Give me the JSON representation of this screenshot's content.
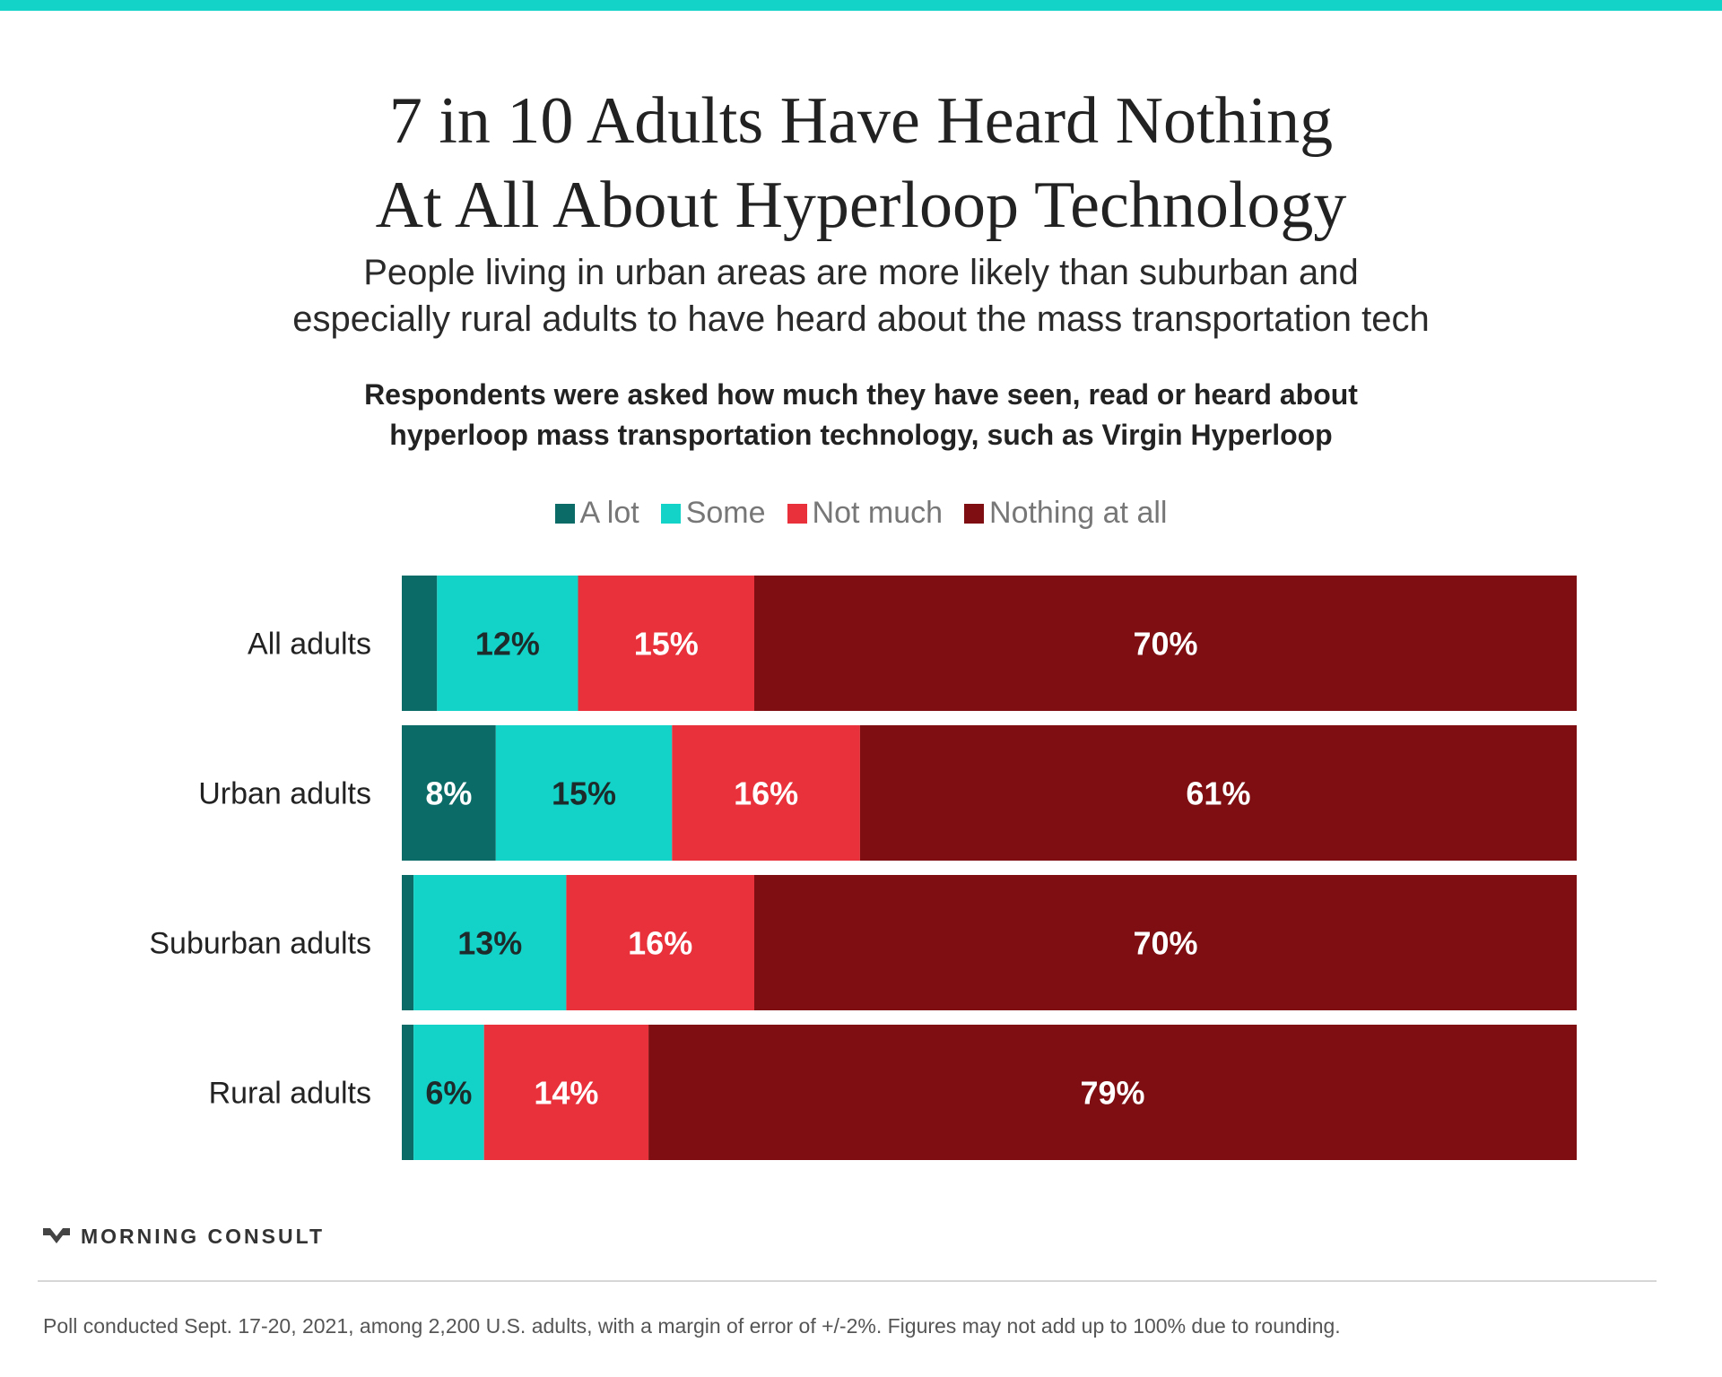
{
  "title_line1": "7 in 10 Adults Have Heard Nothing",
  "title_line2": "At All About Hyperloop Technology",
  "subtitle_line1": "People living in urban areas are more likely than suburban and",
  "subtitle_line2": "especially rural adults to have heard about the mass transportation tech",
  "question_line1": "Respondents were asked how much they have seen, read or heard about",
  "question_line2": "hyperloop mass transportation technology, such as Virgin Hyperloop",
  "brand": "MORNING CONSULT",
  "footnote": "Poll conducted Sept. 17-20, 2021, among 2,200 U.S. adults, with a margin of error of +/-2%. Figures may not add up to 100% due to rounding.",
  "chart_data": {
    "type": "bar",
    "orientation": "horizontal",
    "stacked": true,
    "categories": [
      "All adults",
      "Urban adults",
      "Suburban adults",
      "Rural adults"
    ],
    "series": [
      {
        "name": "A lot",
        "color": "#0b6b66",
        "values": [
          3,
          8,
          1,
          1
        ],
        "labels": [
          "",
          "8%",
          "",
          ""
        ]
      },
      {
        "name": "Some",
        "color": "#13d3c8",
        "values": [
          12,
          15,
          13,
          6
        ],
        "labels": [
          "12%",
          "15%",
          "13%",
          "6%"
        ]
      },
      {
        "name": "Not much",
        "color": "#e8313a",
        "values": [
          15,
          16,
          16,
          14
        ],
        "labels": [
          "15%",
          "16%",
          "16%",
          "14%"
        ]
      },
      {
        "name": "Nothing at all",
        "color": "#7e0e11",
        "values": [
          70,
          61,
          70,
          79
        ],
        "labels": [
          "70%",
          "61%",
          "70%",
          "79%"
        ]
      }
    ],
    "legend_position": "top-center",
    "grid": false
  }
}
